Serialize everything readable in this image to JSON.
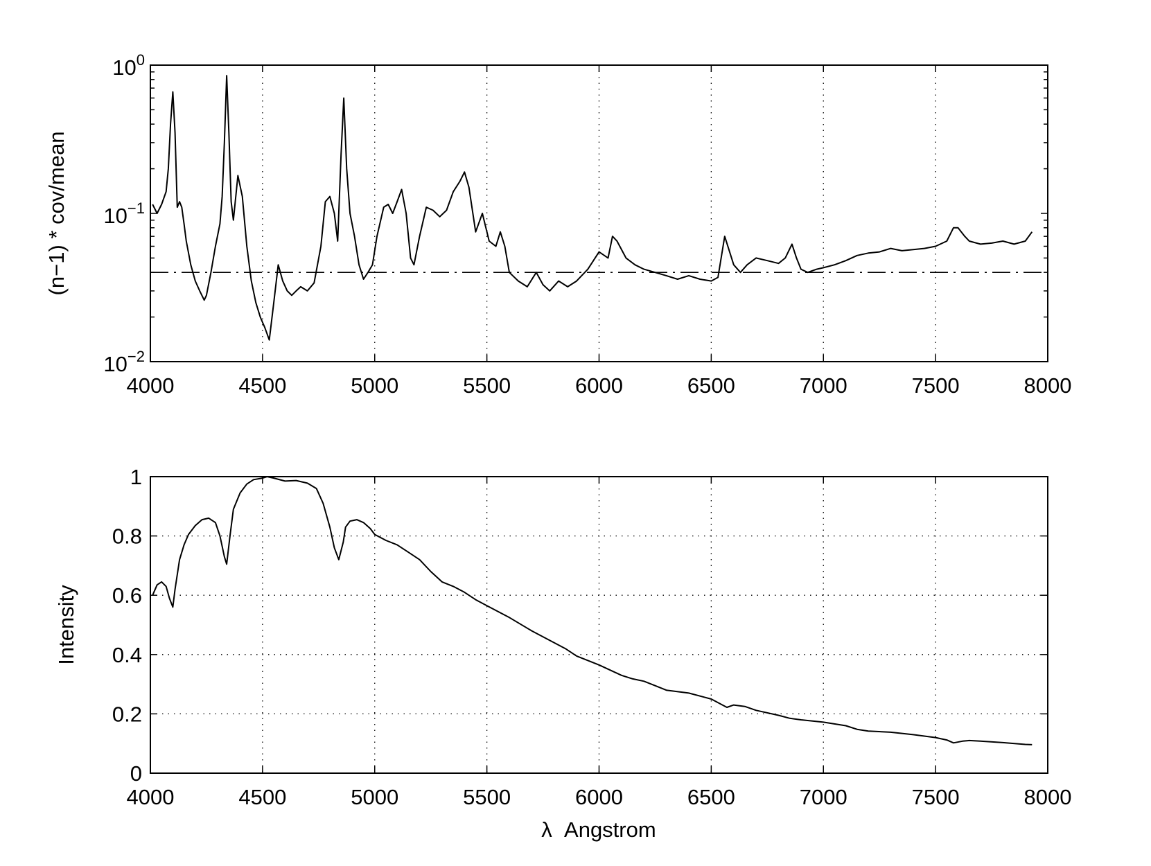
{
  "chart_data": [
    {
      "type": "line",
      "xlabel": "",
      "ylabel": "(n−1) * cov/mean",
      "xlim": [
        4000,
        8000
      ],
      "ylim": [
        0.01,
        1
      ],
      "yscale": "log",
      "grid": "vertical dotted",
      "xticks": [
        4000,
        4500,
        5000,
        5500,
        6000,
        6500,
        7000,
        7500,
        8000
      ],
      "xtick_labels": [
        "4000",
        "4500",
        "5000",
        "5500",
        "6000",
        "6500",
        "7000",
        "7500",
        "8000"
      ],
      "yticks": [
        0.01,
        0.1,
        1
      ],
      "ytick_labels": [
        {
          "base": "10",
          "exp": "−2"
        },
        {
          "base": "10",
          "exp": "−1"
        },
        {
          "base": "10",
          "exp": "0"
        }
      ],
      "reference_line": {
        "y": 0.04,
        "style": "dash-dot"
      },
      "series": [
        {
          "x": [
            4010,
            4030,
            4050,
            4070,
            4080,
            4090,
            4100,
            4110,
            4120,
            4130,
            4140,
            4150,
            4160,
            4180,
            4200,
            4220,
            4240,
            4250,
            4270,
            4290,
            4310,
            4320,
            4330,
            4340,
            4350,
            4360,
            4370,
            4390,
            4410,
            4430,
            4450,
            4470,
            4490,
            4510,
            4530,
            4550,
            4570,
            4590,
            4610,
            4630,
            4650,
            4670,
            4700,
            4730,
            4760,
            4780,
            4800,
            4820,
            4835,
            4850,
            4862,
            4875,
            4890,
            4910,
            4930,
            4950,
            4970,
            4990,
            5010,
            5040,
            5060,
            5080,
            5100,
            5120,
            5140,
            5160,
            5175,
            5200,
            5230,
            5260,
            5290,
            5320,
            5350,
            5380,
            5400,
            5420,
            5450,
            5480,
            5510,
            5540,
            5560,
            5580,
            5600,
            5640,
            5680,
            5720,
            5750,
            5780,
            5820,
            5860,
            5900,
            5950,
            6000,
            6040,
            6060,
            6080,
            6120,
            6160,
            6200,
            6250,
            6300,
            6350,
            6400,
            6450,
            6500,
            6530,
            6560,
            6600,
            6630,
            6660,
            6700,
            6750,
            6800,
            6830,
            6860,
            6880,
            6900,
            6930,
            6970,
            7000,
            7050,
            7100,
            7150,
            7200,
            7250,
            7300,
            7350,
            7400,
            7450,
            7500,
            7550,
            7580,
            7600,
            7630,
            7650,
            7700,
            7750,
            7800,
            7850,
            7900,
            7930
          ],
          "y": [
            0.115,
            0.1,
            0.115,
            0.14,
            0.2,
            0.4,
            0.66,
            0.35,
            0.11,
            0.12,
            0.11,
            0.085,
            0.065,
            0.045,
            0.035,
            0.03,
            0.026,
            0.028,
            0.04,
            0.06,
            0.085,
            0.13,
            0.3,
            0.85,
            0.35,
            0.12,
            0.09,
            0.18,
            0.13,
            0.06,
            0.035,
            0.025,
            0.02,
            0.017,
            0.014,
            0.025,
            0.045,
            0.035,
            0.03,
            0.028,
            0.03,
            0.032,
            0.03,
            0.034,
            0.06,
            0.12,
            0.13,
            0.1,
            0.065,
            0.25,
            0.6,
            0.2,
            0.1,
            0.07,
            0.045,
            0.036,
            0.04,
            0.045,
            0.07,
            0.11,
            0.115,
            0.1,
            0.12,
            0.145,
            0.1,
            0.05,
            0.045,
            0.07,
            0.11,
            0.105,
            0.095,
            0.105,
            0.14,
            0.165,
            0.19,
            0.15,
            0.075,
            0.1,
            0.065,
            0.06,
            0.075,
            0.06,
            0.04,
            0.035,
            0.032,
            0.04,
            0.033,
            0.03,
            0.035,
            0.032,
            0.035,
            0.042,
            0.055,
            0.05,
            0.07,
            0.065,
            0.05,
            0.045,
            0.042,
            0.04,
            0.038,
            0.036,
            0.038,
            0.036,
            0.035,
            0.037,
            0.07,
            0.045,
            0.04,
            0.045,
            0.05,
            0.048,
            0.046,
            0.05,
            0.062,
            0.05,
            0.042,
            0.04,
            0.042,
            0.043,
            0.045,
            0.048,
            0.052,
            0.054,
            0.055,
            0.058,
            0.056,
            0.057,
            0.058,
            0.06,
            0.065,
            0.08,
            0.08,
            0.07,
            0.065,
            0.062,
            0.063,
            0.065,
            0.062,
            0.065,
            0.075
          ]
        }
      ]
    },
    {
      "type": "line",
      "xlabel": "λ  Angstrom",
      "ylabel": "Intensity",
      "xlim": [
        4000,
        8000
      ],
      "ylim": [
        0,
        1
      ],
      "grid": "dotted",
      "xticks": [
        4000,
        4500,
        5000,
        5500,
        6000,
        6500,
        7000,
        7500,
        8000
      ],
      "xtick_labels": [
        "4000",
        "4500",
        "5000",
        "5500",
        "6000",
        "6500",
        "7000",
        "7500",
        "8000"
      ],
      "yticks": [
        0,
        0.2,
        0.4,
        0.6,
        0.8,
        1
      ],
      "ytick_labels": [
        "0",
        "0.2",
        "0.4",
        "0.6",
        "0.8",
        "1"
      ],
      "series": [
        {
          "x": [
            4010,
            4030,
            4050,
            4070,
            4085,
            4100,
            4110,
            4130,
            4150,
            4170,
            4200,
            4230,
            4260,
            4290,
            4310,
            4330,
            4340,
            4355,
            4370,
            4400,
            4430,
            4460,
            4500,
            4520,
            4550,
            4600,
            4650,
            4700,
            4740,
            4770,
            4800,
            4820,
            4840,
            4860,
            4870,
            4890,
            4920,
            4950,
            4980,
            5000,
            5050,
            5100,
            5150,
            5200,
            5250,
            5300,
            5350,
            5400,
            5450,
            5500,
            5600,
            5700,
            5800,
            5850,
            5900,
            6000,
            6100,
            6150,
            6200,
            6250,
            6300,
            6400,
            6500,
            6550,
            6570,
            6600,
            6650,
            6700,
            6800,
            6850,
            6900,
            7000,
            7100,
            7150,
            7200,
            7300,
            7400,
            7500,
            7550,
            7580,
            7620,
            7650,
            7700,
            7800,
            7900,
            7930
          ],
          "y": [
            0.6,
            0.635,
            0.645,
            0.63,
            0.59,
            0.56,
            0.62,
            0.72,
            0.77,
            0.805,
            0.835,
            0.855,
            0.86,
            0.845,
            0.8,
            0.73,
            0.705,
            0.8,
            0.89,
            0.945,
            0.975,
            0.99,
            0.995,
            1.0,
            0.995,
            0.985,
            0.987,
            0.978,
            0.96,
            0.91,
            0.83,
            0.76,
            0.72,
            0.78,
            0.83,
            0.85,
            0.855,
            0.845,
            0.825,
            0.805,
            0.785,
            0.77,
            0.745,
            0.72,
            0.68,
            0.645,
            0.63,
            0.61,
            0.585,
            0.565,
            0.525,
            0.48,
            0.44,
            0.42,
            0.395,
            0.365,
            0.33,
            0.318,
            0.31,
            0.295,
            0.28,
            0.27,
            0.25,
            0.23,
            0.222,
            0.23,
            0.225,
            0.212,
            0.195,
            0.185,
            0.18,
            0.172,
            0.16,
            0.148,
            0.142,
            0.138,
            0.13,
            0.12,
            0.112,
            0.102,
            0.108,
            0.11,
            0.108,
            0.103,
            0.097,
            0.096
          ]
        }
      ]
    }
  ]
}
